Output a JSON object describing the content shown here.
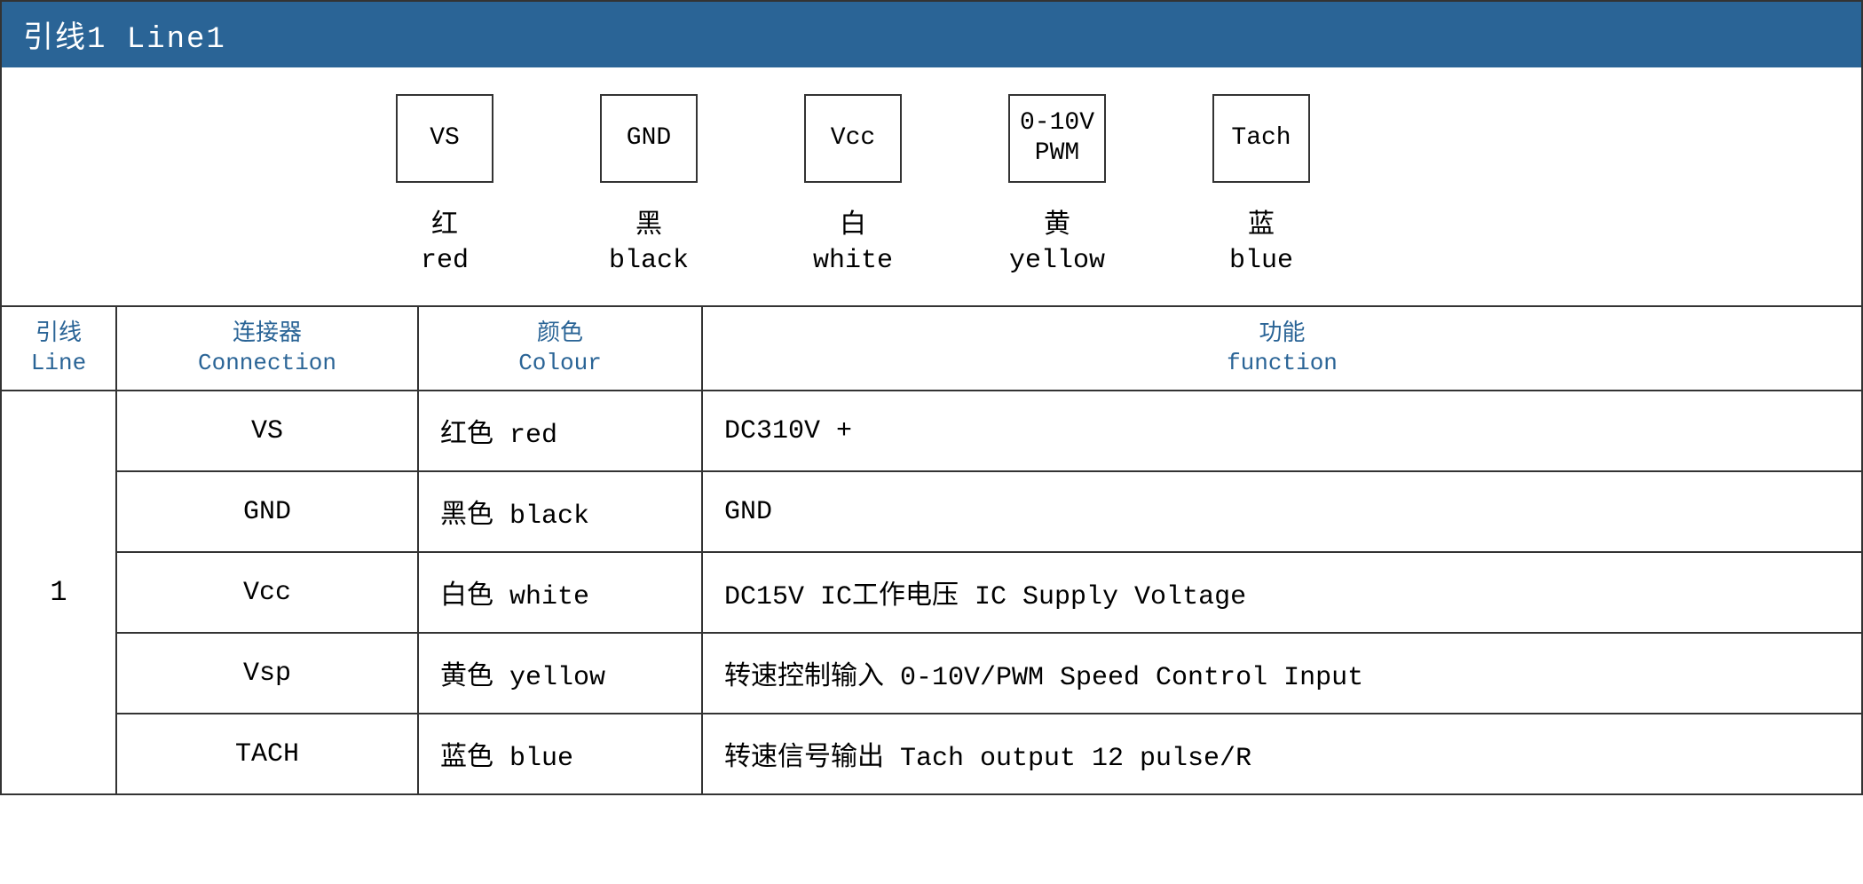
{
  "header": {
    "title": "引线1 Line1"
  },
  "pins": [
    {
      "box_line1": "VS",
      "box_line2": "",
      "label_cn": "红",
      "label_en": "red"
    },
    {
      "box_line1": "GND",
      "box_line2": "",
      "label_cn": "黑",
      "label_en": "black"
    },
    {
      "box_line1": "Vcc",
      "box_line2": "",
      "label_cn": "白",
      "label_en": "white"
    },
    {
      "box_line1": "0-10V",
      "box_line2": "PWM",
      "label_cn": "黄",
      "label_en": "yellow"
    },
    {
      "box_line1": "Tach",
      "box_line2": "",
      "label_cn": "蓝",
      "label_en": "blue"
    }
  ],
  "table": {
    "columns": {
      "line": {
        "cn": "引线",
        "en": "Line"
      },
      "connection": {
        "cn": "连接器",
        "en": "Connection"
      },
      "colour": {
        "cn": "颜色",
        "en": "Colour"
      },
      "function": {
        "cn": "功能",
        "en": "function"
      }
    },
    "line_number": "1",
    "rows": [
      {
        "connection": "VS",
        "colour": "红色 red",
        "function": "DC310V +"
      },
      {
        "connection": "GND",
        "colour": "黑色 black",
        "function": "GND"
      },
      {
        "connection": "Vcc",
        "colour": "白色 white",
        "function": "DC15V  IC工作电压  IC Supply Voltage"
      },
      {
        "connection": "Vsp",
        "colour": "黄色 yellow",
        "function": "转速控制输入 0-10V/PWM Speed Control Input"
      },
      {
        "connection": "TACH",
        "colour": "蓝色 blue",
        "function": "转速信号输出 Tach output 12 pulse/R"
      }
    ]
  },
  "colors": {
    "header_bg": "#2a6496",
    "header_text": "#ffffff",
    "table_header_text": "#2a6496",
    "border": "#333333",
    "body_text": "#000000"
  }
}
